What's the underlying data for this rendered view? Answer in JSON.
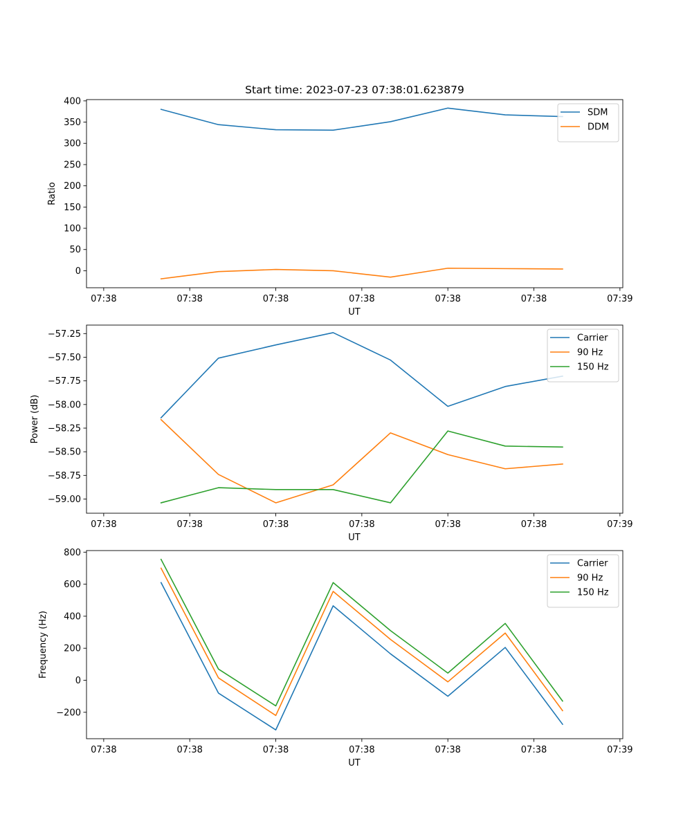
{
  "title": "Start time: 2023-07-23 07:38:01.623879",
  "chart_data": [
    {
      "type": "line",
      "xlabel": "UT",
      "ylabel": "Ratio",
      "xlim": [
        -0.3,
        9.05
      ],
      "ylim": [
        -40,
        403
      ],
      "x": [
        1,
        2,
        3,
        4,
        5,
        6,
        7,
        8
      ],
      "xticks": [
        0,
        1.5,
        3,
        4.5,
        6,
        7.5,
        9
      ],
      "xtick_labels": [
        "07:38",
        "07:38",
        "07:38",
        "07:38",
        "07:38",
        "07:38",
        "07:39"
      ],
      "yticks": [
        0,
        50,
        100,
        150,
        200,
        250,
        300,
        350,
        400
      ],
      "ytick_labels": [
        "0",
        "50",
        "100",
        "150",
        "200",
        "250",
        "300",
        "350",
        "400"
      ],
      "legend_position": "top-right",
      "series": [
        {
          "name": "SDM",
          "color": "#1f77b4",
          "values": [
            380,
            344,
            332,
            331,
            351,
            383,
            367,
            363
          ]
        },
        {
          "name": "DDM",
          "color": "#ff7f0e",
          "values": [
            -19,
            -2,
            3,
            0,
            -15,
            6,
            5,
            4
          ]
        }
      ]
    },
    {
      "type": "line",
      "xlabel": "UT",
      "ylabel": "Power (dB)",
      "xlim": [
        -0.3,
        9.05
      ],
      "ylim": [
        -59.15,
        -57.16
      ],
      "x": [
        1,
        2,
        3,
        4,
        5,
        6,
        7,
        8
      ],
      "xticks": [
        0,
        1.5,
        3,
        4.5,
        6,
        7.5,
        9
      ],
      "xtick_labels": [
        "07:38",
        "07:38",
        "07:38",
        "07:38",
        "07:38",
        "07:38",
        "07:39"
      ],
      "yticks": [
        -59.0,
        -58.75,
        -58.5,
        -58.25,
        -58.0,
        -57.75,
        -57.5,
        -57.25
      ],
      "ytick_labels": [
        "−59.00",
        "−58.75",
        "−58.50",
        "−58.25",
        "−58.00",
        "−57.75",
        "−57.50",
        "−57.25"
      ],
      "legend_position": "top-right",
      "series": [
        {
          "name": "Carrier",
          "color": "#1f77b4",
          "values": [
            -58.14,
            -57.51,
            -57.37,
            -57.24,
            -57.53,
            -58.02,
            -57.81,
            -57.7
          ]
        },
        {
          "name": "90 Hz",
          "color": "#ff7f0e",
          "values": [
            -58.16,
            -58.74,
            -59.04,
            -58.85,
            -58.3,
            -58.53,
            -58.68,
            -58.63
          ]
        },
        {
          "name": "150 Hz",
          "color": "#2ca02c",
          "values": [
            -59.04,
            -58.88,
            -58.9,
            -58.9,
            -59.04,
            -58.28,
            -58.44,
            -58.45
          ]
        }
      ]
    },
    {
      "type": "line",
      "xlabel": "UT",
      "ylabel": "Frequency (Hz)",
      "xlim": [
        -0.3,
        9.05
      ],
      "ylim": [
        -365,
        810
      ],
      "x": [
        1,
        2,
        3,
        4,
        5,
        6,
        7,
        8
      ],
      "xticks": [
        0,
        1.5,
        3,
        4.5,
        6,
        7.5,
        9
      ],
      "xtick_labels": [
        "07:38",
        "07:38",
        "07:38",
        "07:38",
        "07:38",
        "07:38",
        "07:39"
      ],
      "yticks": [
        -200,
        0,
        200,
        400,
        600,
        800
      ],
      "ytick_labels": [
        "−200",
        "0",
        "200",
        "400",
        "600",
        "800"
      ],
      "legend_position": "top-right",
      "series": [
        {
          "name": "Carrier",
          "color": "#1f77b4",
          "values": [
            610,
            -80,
            -310,
            465,
            165,
            -100,
            205,
            -275
          ]
        },
        {
          "name": "90 Hz",
          "color": "#ff7f0e",
          "values": [
            700,
            15,
            -220,
            555,
            255,
            -10,
            295,
            -190
          ]
        },
        {
          "name": "150 Hz",
          "color": "#2ca02c",
          "values": [
            755,
            70,
            -160,
            610,
            310,
            45,
            355,
            -130
          ]
        }
      ]
    }
  ]
}
